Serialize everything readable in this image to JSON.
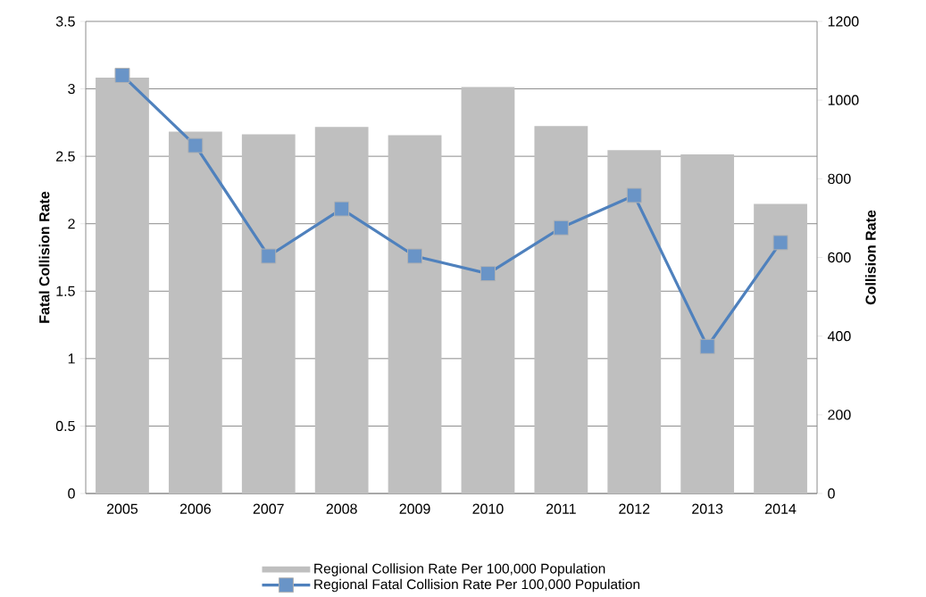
{
  "chart_data": {
    "type": "bar",
    "categories": [
      "2005",
      "2006",
      "2007",
      "2008",
      "2009",
      "2010",
      "2011",
      "2012",
      "2013",
      "2014"
    ],
    "series": [
      {
        "name": "Regional Collision Rate Per 100,000 Population",
        "axis": "y2",
        "color": "#bfbfbf",
        "values": [
          1057,
          920,
          913,
          932,
          911,
          1033,
          934,
          873,
          862,
          736
        ]
      },
      {
        "name": "Regional Fatal Collision Rate Per 100,000 Population",
        "type": "line",
        "color": "#4f81bd",
        "marker": "square",
        "line_style": "solid",
        "values": [
          3.1,
          2.58,
          1.76,
          2.11,
          1.76,
          1.63,
          1.97,
          2.21,
          1.09,
          1.86
        ]
      }
    ],
    "ylabel": "Fatal Collision Rate",
    "y2label": "Collision Rate",
    "ylim": [
      0,
      3.5
    ],
    "yticks": [
      0,
      0.5,
      1,
      1.5,
      2,
      2.5,
      3,
      3.5
    ],
    "y2lim": [
      0,
      1200
    ],
    "y2ticks": [
      0,
      200,
      400,
      600,
      800,
      1000,
      1200
    ],
    "grid": "y",
    "legend": "bottom"
  }
}
